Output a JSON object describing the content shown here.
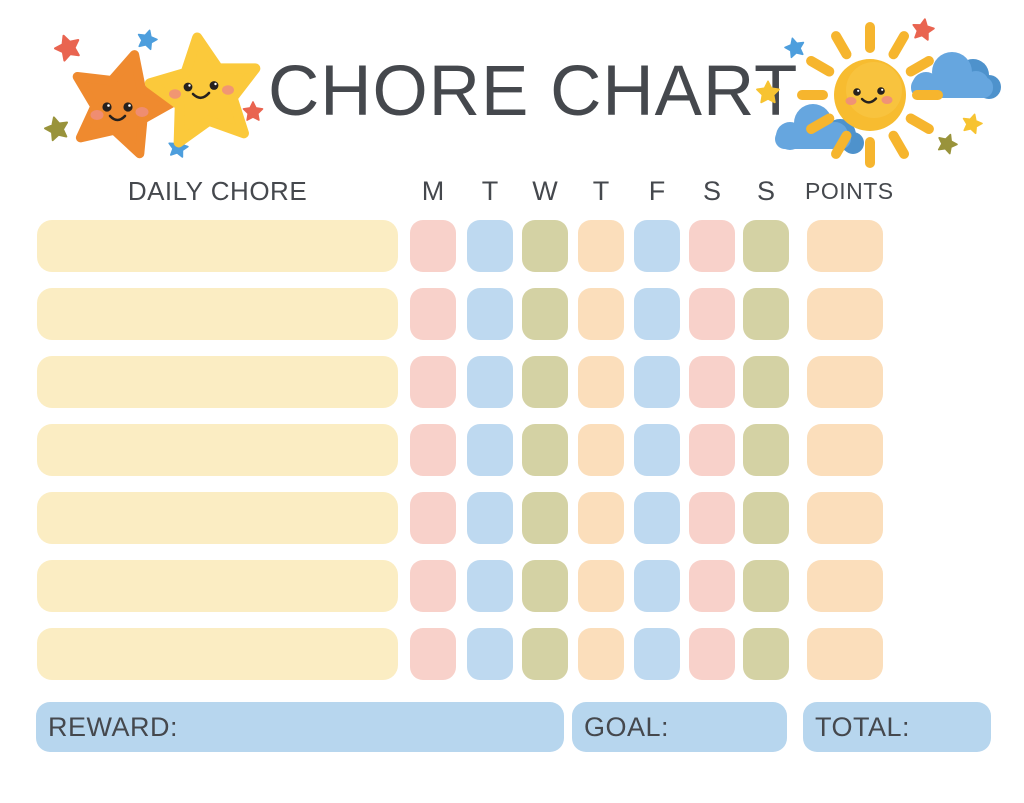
{
  "title": "CHORE CHART",
  "table": {
    "chore_column_header": "DAILY CHORE",
    "day_headers": [
      "M",
      "T",
      "W",
      "T",
      "F",
      "S",
      "S"
    ],
    "points_header": "POINTS",
    "row_count": 7,
    "cells_blank": true,
    "day_colors": [
      "pink",
      "blue",
      "olive",
      "peach",
      "blue",
      "pink",
      "olive"
    ],
    "points_color": "peach",
    "chore_color": "chore-bar"
  },
  "footer": {
    "reward_label": "REWARD:",
    "goal_label": "GOAL:",
    "total_label": "TOTAL:"
  },
  "decorations": {
    "left": {
      "name": "two-smiling-stars",
      "mini_star_colors": [
        "mini-red",
        "mini-blue",
        "mini-olive",
        "mini-red",
        "mini-blue"
      ]
    },
    "right": {
      "name": "smiling-sun-with-clouds",
      "mini_star_colors": [
        "mini-blue",
        "mini-red",
        "mini-yellow",
        "mini-yellow",
        "mini-olive"
      ]
    }
  },
  "palette": {
    "text": "#45484D",
    "chore-bar": "#FBEDC3",
    "pink": "#F8D1CA",
    "blue": "#BED9F0",
    "olive": "#D4D2A4",
    "peach": "#FBDEBB",
    "footer": "#B7D6EE",
    "star-orange": "#EF8A2F",
    "star-yellow": "#FBC93B",
    "sun": "#F7BC30",
    "sun-hi": "#F9C84A",
    "ray": "#F6B52E",
    "cloud": "#66A6DF",
    "cloud-dark": "#4E92CC",
    "mini-red": "#E96450",
    "mini-blue": "#4D9EDD",
    "mini-olive": "#99933B",
    "mini-yellow": "#F7C331",
    "cheek": "#EE8D7C",
    "face": "#26211E"
  }
}
